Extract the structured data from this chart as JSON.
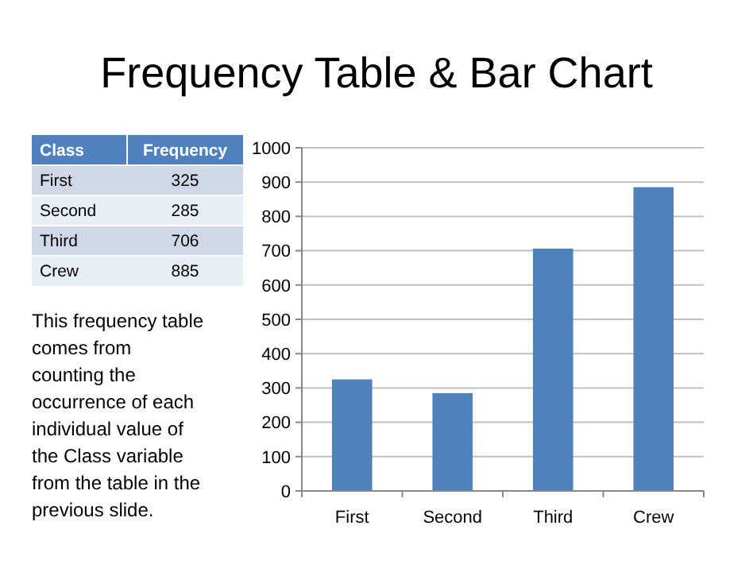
{
  "chart_data": {
    "type": "bar",
    "title": "Frequency Table & Bar Chart",
    "categories": [
      "First",
      "Second",
      "Third",
      "Crew"
    ],
    "values": [
      325,
      285,
      706,
      885
    ],
    "color": "#4f81bd",
    "ylim": [
      0,
      1000
    ],
    "yticks": [
      0,
      100,
      200,
      300,
      400,
      500,
      600,
      700,
      800,
      900,
      1000
    ],
    "grid": "y",
    "annotations": [
      "Class",
      "Frequency",
      "325",
      "285",
      "706",
      "885",
      "This frequency table\ncomes from\ncounting the\noccurrence of each\nindividual value of\nthe Class variable\nfrom the table in the\nprevious slide."
    ]
  }
}
